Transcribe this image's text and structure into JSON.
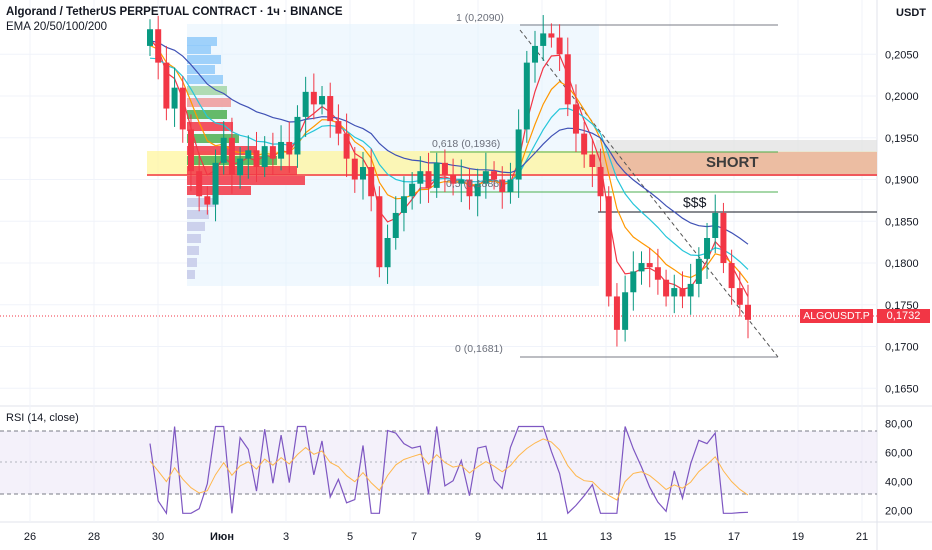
{
  "header": {
    "title": "Algorand / TetherUS PERPETUAL CONTRACT · 1ч · BINANCE",
    "indicator": "EMA 20/50/100/200",
    "currency": "USDT"
  },
  "price_axis": [
    "0,2050",
    "0,2000",
    "0,1950",
    "0,1900",
    "0,1850",
    "0,1800",
    "0,1750",
    "0,1700",
    "0,1650"
  ],
  "rsi_axis": [
    "80,00",
    "60,00",
    "40,00",
    "20,00"
  ],
  "time_axis": [
    "26",
    "28",
    "30",
    "Июн",
    "3",
    "5",
    "7",
    "9",
    "11",
    "13",
    "15",
    "17",
    "19",
    "21"
  ],
  "annotations": {
    "fib_1": "1 (0,2090)",
    "fib_618": "0,618 (0,1936)",
    "fib_5": "0,5 (0,1886)",
    "fib_0": "0 (0,1681)",
    "short": "SHORT",
    "liquidity": "$$$"
  },
  "rsi": {
    "label": "RSI (14, close)"
  },
  "last_price": {
    "ticker": "ALGOUSDT.P",
    "value": "0,1732"
  },
  "colors": {
    "up": "#089981",
    "down": "#f23645",
    "ema20": "#f23645",
    "ema50": "#ff9800",
    "ema100": "#26c6da",
    "ema200": "#3f51b5",
    "rsi": "#7e57c2"
  },
  "chart_data": {
    "type": "candlestick",
    "ylim": [
      0.163,
      0.2115
    ],
    "close": [
      0.208,
      0.204,
      0.1985,
      0.201,
      0.196,
      0.191,
      0.188,
      0.187,
      0.192,
      0.195,
      0.1905,
      0.1925,
      0.1935,
      0.1915,
      0.194,
      0.1925,
      0.1945,
      0.193,
      0.1975,
      0.2005,
      0.199,
      0.2,
      0.197,
      0.1955,
      0.1925,
      0.19,
      0.1915,
      0.188,
      0.1795,
      0.183,
      0.186,
      0.188,
      0.1895,
      0.191,
      0.189,
      0.192,
      0.1905,
      0.1895,
      0.19,
      0.188,
      0.1895,
      0.191,
      0.19,
      0.1885,
      0.19,
      0.196,
      0.204,
      0.206,
      0.2075,
      0.207,
      0.205,
      0.199,
      0.1955,
      0.193,
      0.1915,
      0.188,
      0.176,
      0.172,
      0.1765,
      0.179,
      0.18,
      0.1795,
      0.178,
      0.176,
      0.177,
      0.176,
      0.1775,
      0.1805,
      0.183,
      0.186,
      0.18,
      0.177,
      0.175,
      0.1732
    ]
  }
}
